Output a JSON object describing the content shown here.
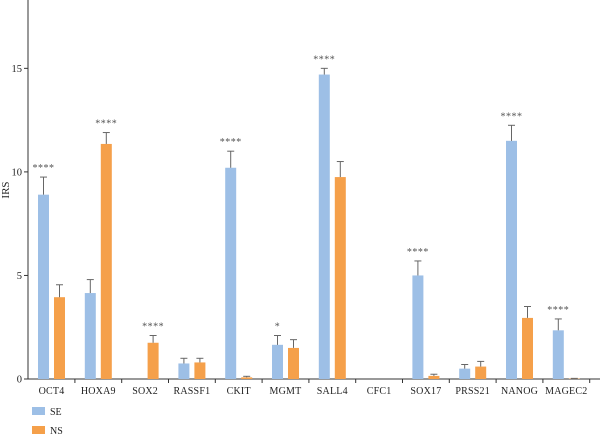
{
  "chart_data": {
    "type": "bar",
    "ylabel": "IRS",
    "ylim": [
      0,
      18.3
    ],
    "yticks": [
      0,
      5,
      10,
      15
    ],
    "categories": [
      "OCT4",
      "HOXA9",
      "SOX2",
      "RASSF1",
      "CKIT",
      "MGMT",
      "SALL4",
      "CFC1",
      "SOX17",
      "PRSS21",
      "NANOG",
      "MAGEC2"
    ],
    "series": [
      {
        "name": "SE",
        "color": "#9dbfe6",
        "values": [
          8.9,
          4.15,
          0,
          0.75,
          10.2,
          1.65,
          14.7,
          0,
          5.0,
          0.5,
          11.5,
          2.35
        ],
        "errors": [
          0.85,
          0.65,
          0,
          0.25,
          0.8,
          0.45,
          0.3,
          0,
          0.7,
          0.2,
          0.75,
          0.55
        ]
      },
      {
        "name": "NS",
        "color": "#f5a04a",
        "values": [
          3.95,
          11.35,
          1.75,
          0.8,
          0.08,
          1.5,
          9.75,
          0,
          0.15,
          0.6,
          2.95,
          0.02
        ],
        "errors": [
          0.6,
          0.55,
          0.35,
          0.2,
          0.05,
          0.4,
          0.75,
          0,
          0.08,
          0.25,
          0.55,
          0.01
        ]
      }
    ],
    "significance": [
      {
        "category": "OCT4",
        "series": "SE",
        "label": "****"
      },
      {
        "category": "HOXA9",
        "series": "NS",
        "label": "****"
      },
      {
        "category": "SOX2",
        "series": "NS",
        "label": "****"
      },
      {
        "category": "CKIT",
        "series": "SE",
        "label": "****"
      },
      {
        "category": "MGMT",
        "series": "SE",
        "label": "*"
      },
      {
        "category": "SALL4",
        "series": "SE",
        "label": "****"
      },
      {
        "category": "SOX17",
        "series": "SE",
        "label": "****"
      },
      {
        "category": "NANOG",
        "series": "SE",
        "label": "****"
      },
      {
        "category": "MAGEC2",
        "series": "SE",
        "label": "****"
      }
    ],
    "legend": {
      "position": "bottom-left",
      "items": [
        "SE",
        "NS"
      ]
    },
    "grid": false
  }
}
